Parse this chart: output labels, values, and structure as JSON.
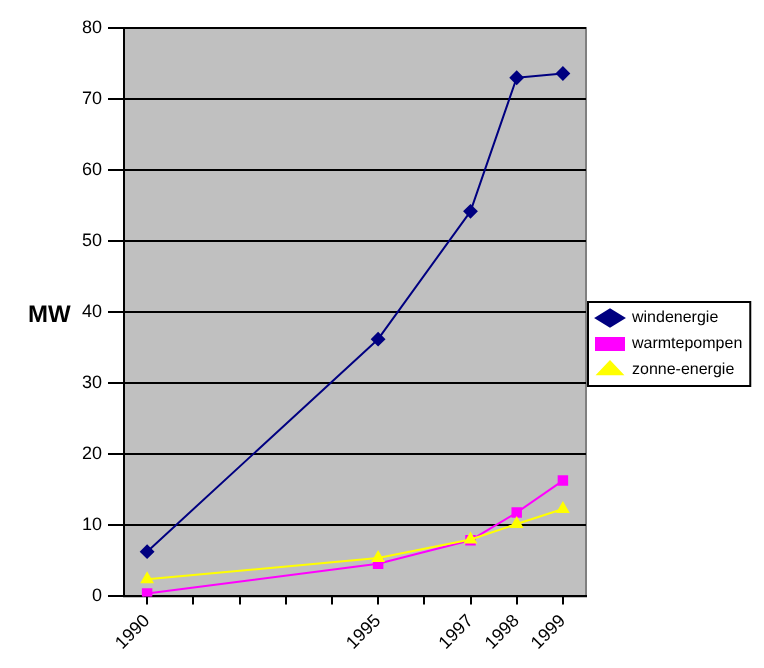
{
  "chart_data": {
    "type": "line",
    "ylabel": "MW",
    "x": [
      1990,
      1995,
      1997,
      1998,
      1999
    ],
    "series": [
      {
        "name": "windenergie",
        "color": "#000080",
        "values": [
          6.3,
          36.2,
          54.2,
          73,
          73.6
        ],
        "marker": "diamond"
      },
      {
        "name": "warmtepompen",
        "color": "#ff00ff",
        "values": [
          0.4,
          4.6,
          7.9,
          11.8,
          16.3
        ],
        "marker": "square"
      },
      {
        "name": "zonne-energie",
        "color": "#ffff00",
        "values": [
          2.4,
          5.4,
          8.0,
          10.2,
          12.3
        ],
        "marker": "triangle"
      }
    ],
    "xlim": [
      1989.5,
      1999.5
    ],
    "xticks": [
      1990,
      {
        "value": 1991,
        "label": null
      },
      {
        "value": 1992,
        "label": null
      },
      {
        "value": 1993,
        "label": null
      },
      {
        "value": 1994,
        "label": null
      },
      1995,
      {
        "value": 1996,
        "label": null
      },
      1997,
      1998,
      1999
    ],
    "ylim": [
      0,
      80
    ],
    "yticks": [
      0,
      10,
      20,
      30,
      40,
      50,
      60,
      70,
      80
    ],
    "grid": "y",
    "legend": "right"
  }
}
